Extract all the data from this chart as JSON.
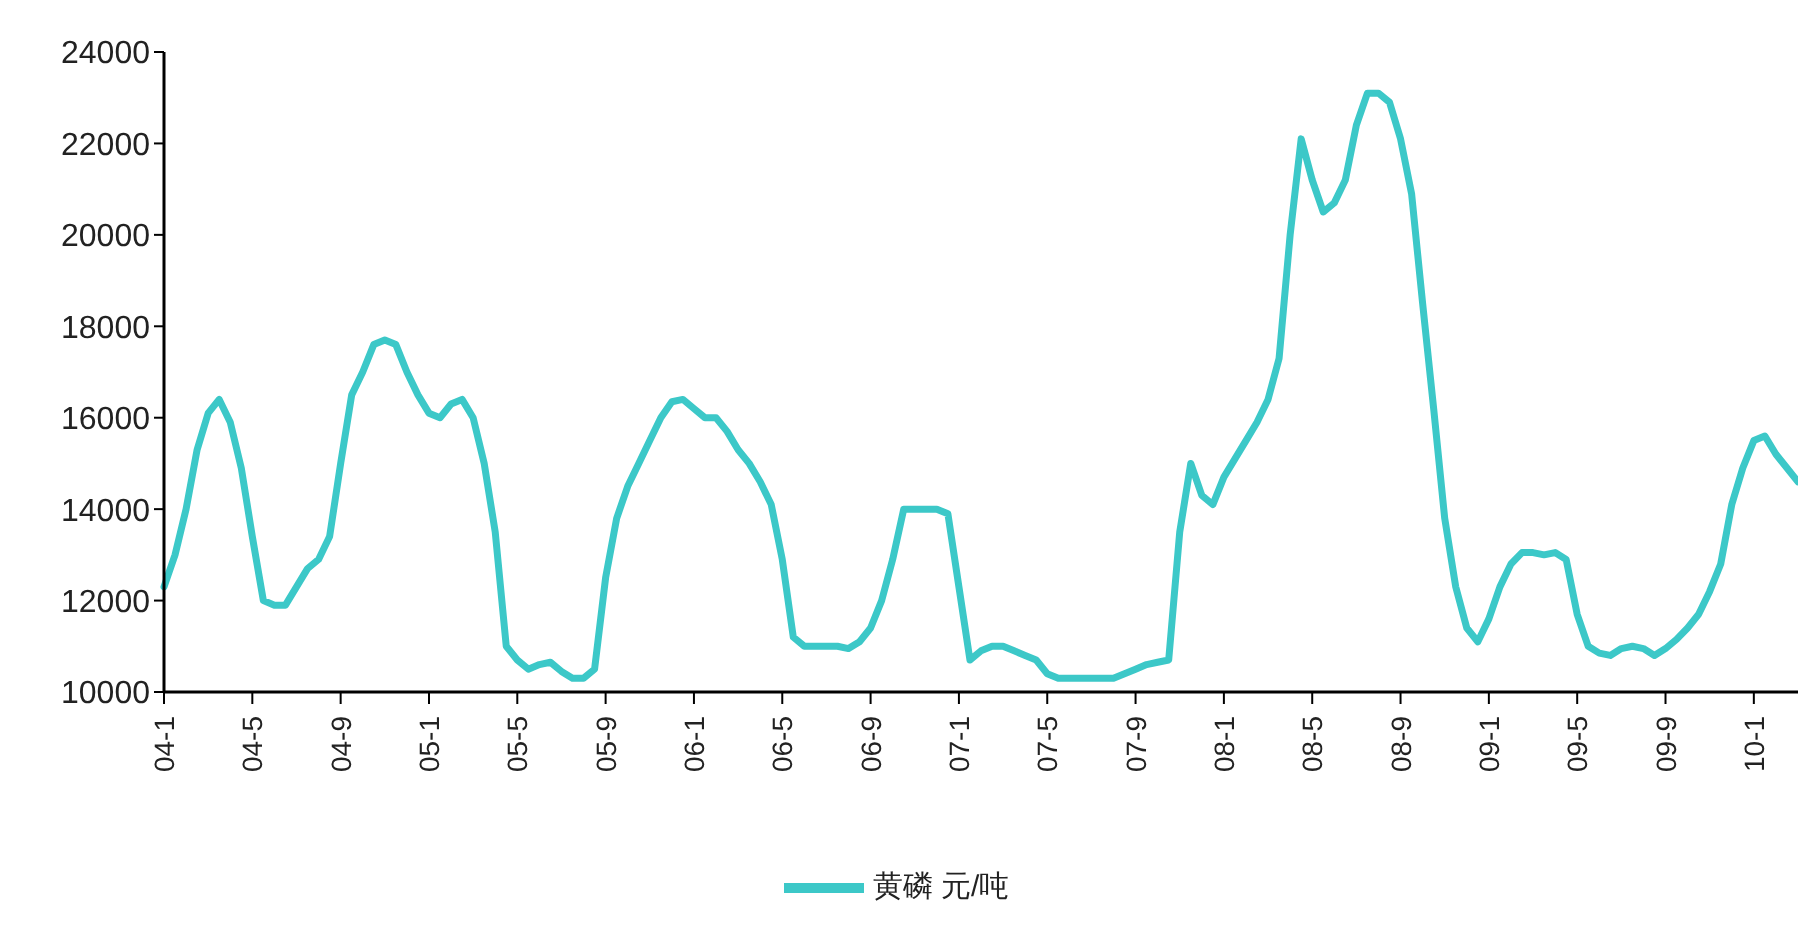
{
  "chart_data": {
    "type": "line",
    "legend": "bottom",
    "marker": "none",
    "line_style": "solid",
    "grid": false,
    "categories": [
      "04-1",
      null,
      null,
      null,
      null,
      null,
      null,
      null,
      "04-5",
      null,
      null,
      null,
      null,
      null,
      null,
      null,
      "04-9",
      null,
      null,
      null,
      null,
      null,
      null,
      null,
      "05-1",
      null,
      null,
      null,
      null,
      null,
      null,
      null,
      "05-5",
      null,
      null,
      null,
      null,
      null,
      null,
      null,
      "05-9",
      null,
      null,
      null,
      null,
      null,
      null,
      null,
      "06-1",
      null,
      null,
      null,
      null,
      null,
      null,
      null,
      "06-5",
      null,
      null,
      null,
      null,
      null,
      null,
      null,
      "06-9",
      null,
      null,
      null,
      null,
      null,
      null,
      null,
      "07-1",
      null,
      null,
      null,
      null,
      null,
      null,
      null,
      "07-5",
      null,
      null,
      null,
      null,
      null,
      null,
      null,
      "07-9",
      null,
      null,
      null,
      null,
      null,
      null,
      null,
      "08-1",
      null,
      null,
      null,
      null,
      null,
      null,
      null,
      "08-5",
      null,
      null,
      null,
      null,
      null,
      null,
      null,
      "08-9",
      null,
      null,
      null,
      null,
      null,
      null,
      null,
      "09-1",
      null,
      null,
      null,
      null,
      null,
      null,
      null,
      "09-5",
      null,
      null,
      null,
      null,
      null,
      null,
      null,
      "09-9",
      null,
      null,
      null,
      null,
      null,
      null,
      null,
      "10-1",
      null,
      null,
      null,
      null
    ],
    "series": [
      {
        "name": "黄磷 元/吨",
        "color": "#3cc8c8",
        "values": [
          12300,
          13000,
          14000,
          15300,
          16100,
          16400,
          15900,
          14900,
          13400,
          12000,
          11900,
          11900,
          12300,
          12700,
          12900,
          13400,
          15000,
          16500,
          17000,
          17600,
          17700,
          17600,
          17000,
          16500,
          16100,
          16000,
          16300,
          16400,
          16000,
          15000,
          13500,
          11000,
          10700,
          10500,
          10600,
          10650,
          10450,
          10300,
          10300,
          10500,
          12500,
          13800,
          14500,
          15000,
          15500,
          16000,
          16350,
          16400,
          16200,
          16000,
          16000,
          15700,
          15300,
          15000,
          14600,
          14100,
          12900,
          11200,
          11000,
          11000,
          11000,
          11000,
          10950,
          11100,
          11400,
          12000,
          12900,
          14000,
          14000,
          14000,
          14000,
          13900,
          12300,
          10700,
          10900,
          11000,
          11000,
          10900,
          10800,
          10700,
          10400,
          10300,
          10300,
          10300,
          10300,
          10300,
          10300,
          10400,
          10500,
          10600,
          10650,
          10700,
          13500,
          15000,
          14300,
          14100,
          14700,
          15100,
          15500,
          15900,
          16400,
          17300,
          20000,
          22100,
          21200,
          20500,
          20700,
          21200,
          22400,
          23100,
          23100,
          22900,
          22100,
          20900,
          18500,
          16200,
          13800,
          12300,
          11400,
          11100,
          11600,
          12300,
          12800,
          13050,
          13050,
          13000,
          13050,
          12900,
          11700,
          11000,
          10850,
          10800,
          10950,
          11000,
          10950,
          10800,
          10950,
          11150,
          11400,
          11700,
          12200,
          12800,
          14100,
          14900,
          15500,
          15600,
          15200,
          14900,
          14600
        ]
      }
    ],
    "ylim": [
      10000,
      24000
    ],
    "yticks": [
      10000,
      12000,
      14000,
      16000,
      18000,
      20000,
      22000,
      24000
    ]
  }
}
